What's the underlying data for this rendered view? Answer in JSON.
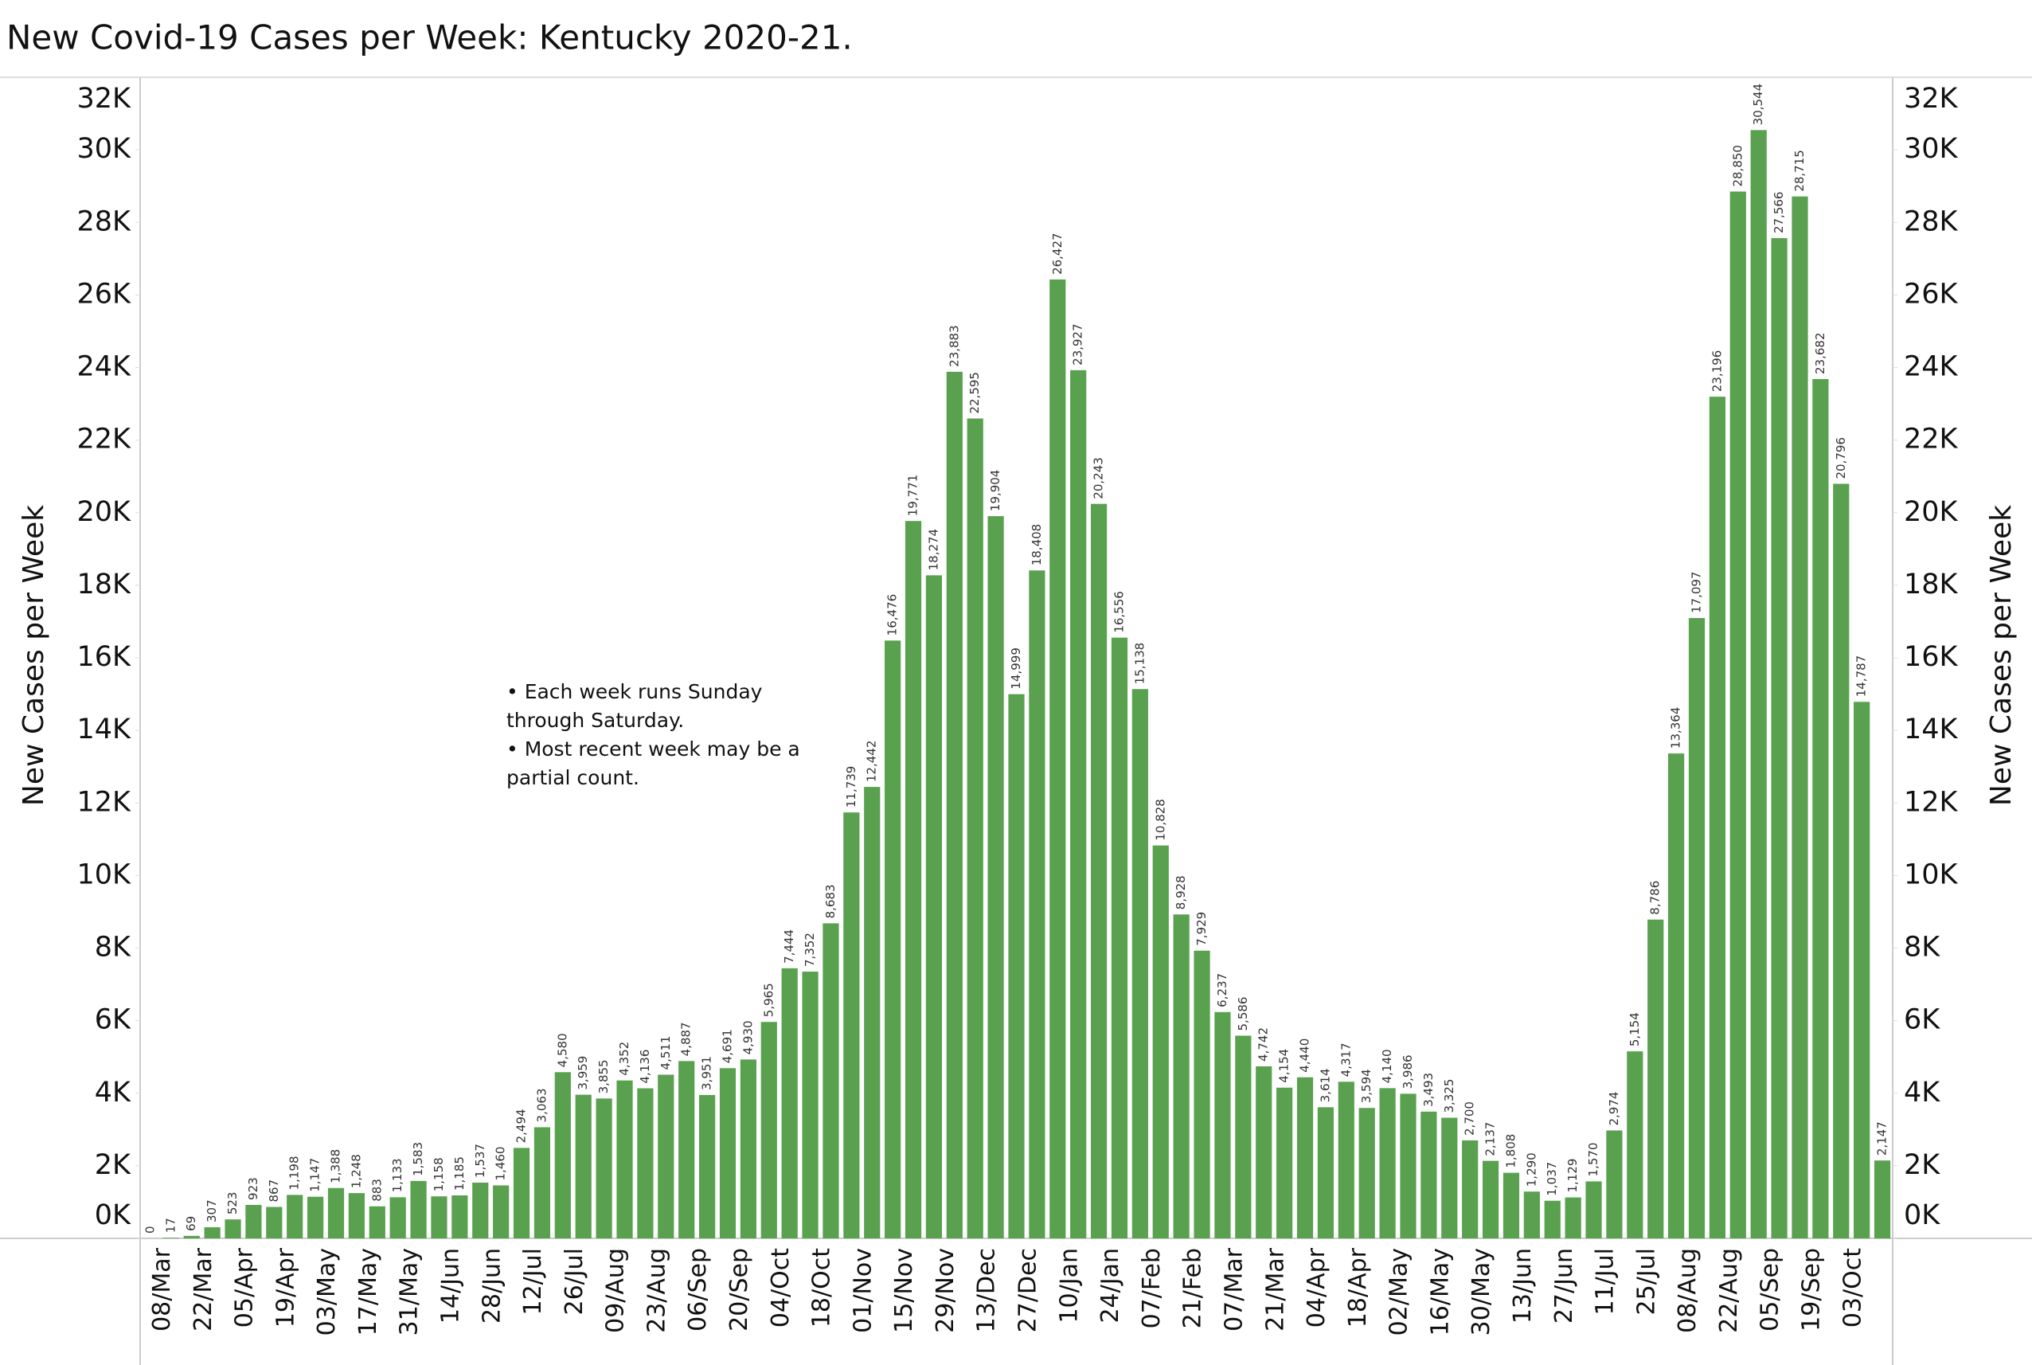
{
  "chart_data": {
    "type": "bar",
    "title": "New Covid-19 Cases per Week:  Kentucky 2020-21.",
    "ylabel": "New Cases per Week",
    "y2label": "New Cases per Week",
    "annotation": [
      "• Each week runs Sunday",
      "through Saturday.",
      "• Most recent week may be a",
      "partial count."
    ],
    "color": "#59a14f",
    "categories": [
      "08/Mar",
      null,
      "22/Mar",
      null,
      "05/Apr",
      null,
      "19/Apr",
      null,
      "03/May",
      null,
      "17/May",
      null,
      "31/May",
      null,
      "14/Jun",
      null,
      "28/Jun",
      null,
      "12/Jul",
      null,
      "26/Jul",
      null,
      "09/Aug",
      null,
      "23/Aug",
      null,
      "06/Sep",
      null,
      "20/Sep",
      null,
      "04/Oct",
      null,
      "18/Oct",
      null,
      "01/Nov",
      null,
      "15/Nov",
      null,
      "29/Nov",
      null,
      "13/Dec",
      null,
      "27/Dec",
      null,
      "10/Jan",
      null,
      "24/Jan",
      null,
      "07/Feb",
      null,
      "21/Feb",
      null,
      "07/Mar",
      null,
      "21/Mar",
      null,
      "04/Apr",
      null,
      "18/Apr",
      null,
      "02/May",
      null,
      "16/May",
      null,
      "30/May",
      null,
      "13/Jun",
      null,
      "27/Jun",
      null,
      "11/Jul",
      null,
      "25/Jul",
      null,
      "08/Aug",
      null,
      "22/Aug",
      null,
      "05/Sep",
      null,
      "19/Sep",
      null,
      "03/Oct",
      null,
      null
    ],
    "values": [
      0,
      17,
      69,
      307,
      523,
      923,
      867,
      1198,
      1147,
      1388,
      1248,
      883,
      1133,
      1583,
      1158,
      1185,
      1537,
      1460,
      2494,
      3063,
      4580,
      3959,
      3855,
      4352,
      4136,
      4511,
      4887,
      3951,
      4691,
      4930,
      5965,
      7444,
      7352,
      8683,
      11739,
      12442,
      16476,
      19771,
      18274,
      23883,
      22595,
      19904,
      14999,
      18408,
      26427,
      23927,
      20243,
      16556,
      15138,
      10828,
      8928,
      7929,
      6237,
      5586,
      4742,
      4154,
      4440,
      3614,
      4317,
      3594,
      4140,
      3986,
      3493,
      3325,
      2700,
      2137,
      1808,
      1290,
      1037,
      1129,
      1570,
      2974,
      5154,
      8786,
      13364,
      17097,
      23196,
      28850,
      30544,
      27566,
      28715,
      23682,
      20796,
      14787,
      2147
    ],
    "value_labels": [
      "0",
      "17",
      "69",
      "307",
      "523",
      "923",
      "867",
      "1,198",
      "1,147",
      "1,388",
      "1,248",
      "883",
      "1,133",
      "1,583",
      "1,158",
      "1,185",
      "1,537",
      "1,460",
      "2,494",
      "3,063",
      "4,580",
      "3,959",
      "3,855",
      "4,352",
      "4,136",
      "4,511",
      "4,887",
      "3,951",
      "4,691",
      "4,930",
      "5,965",
      "7,444",
      "7,352",
      "8,683",
      "11,739",
      "12,442",
      "16,476",
      "19,771",
      "18,274",
      "23,883",
      "22,595",
      "19,904",
      "14,999",
      "18,408",
      "26,427",
      "23,927",
      "20,243",
      "16,556",
      "15,138",
      "10,828",
      "8,928",
      "7,929",
      "6,237",
      "5,586",
      "4,742",
      "4,154",
      "4,440",
      "3,614",
      "4,317",
      "3,594",
      "4,140",
      "3,986",
      "3,493",
      "3,325",
      "2,700",
      "2,137",
      "1,808",
      "1,290",
      "1,037",
      "1,129",
      "1,570",
      "2,974",
      "5,154",
      "8,786",
      "13,364",
      "17,097",
      "23,196",
      "28,850",
      "30,544",
      "27,566",
      "28,715",
      "23,682",
      "20,796",
      "14,787",
      "2,147"
    ],
    "ylim": [
      0,
      32000
    ],
    "yticks": [
      {
        "value": 0,
        "label": "0K"
      },
      {
        "value": 2000,
        "label": "2K"
      },
      {
        "value": 4000,
        "label": "4K"
      },
      {
        "value": 6000,
        "label": "6K"
      },
      {
        "value": 8000,
        "label": "8K"
      },
      {
        "value": 10000,
        "label": "10K"
      },
      {
        "value": 12000,
        "label": "12K"
      },
      {
        "value": 14000,
        "label": "14K"
      },
      {
        "value": 16000,
        "label": "16K"
      },
      {
        "value": 18000,
        "label": "18K"
      },
      {
        "value": 20000,
        "label": "20K"
      },
      {
        "value": 22000,
        "label": "22K"
      },
      {
        "value": 24000,
        "label": "24K"
      },
      {
        "value": 26000,
        "label": "26K"
      },
      {
        "value": 28000,
        "label": "28K"
      },
      {
        "value": 30000,
        "label": "30K"
      },
      {
        "value": 32000,
        "label": "32K"
      }
    ],
    "y2lim": [
      0,
      32000
    ],
    "y2ticks": [
      {
        "value": 0,
        "label": "0K"
      },
      {
        "value": 2000,
        "label": "2K"
      },
      {
        "value": 4000,
        "label": "4K"
      },
      {
        "value": 6000,
        "label": "6K"
      },
      {
        "value": 8000,
        "label": "8K"
      },
      {
        "value": 10000,
        "label": "10K"
      },
      {
        "value": 12000,
        "label": "12K"
      },
      {
        "value": 14000,
        "label": "14K"
      },
      {
        "value": 16000,
        "label": "16K"
      },
      {
        "value": 18000,
        "label": "18K"
      },
      {
        "value": 20000,
        "label": "20K"
      },
      {
        "value": 22000,
        "label": "22K"
      },
      {
        "value": 24000,
        "label": "24K"
      },
      {
        "value": 26000,
        "label": "26K"
      },
      {
        "value": 28000,
        "label": "28K"
      },
      {
        "value": 30000,
        "label": "30K"
      },
      {
        "value": 32000,
        "label": "32K"
      }
    ],
    "grid": false
  }
}
